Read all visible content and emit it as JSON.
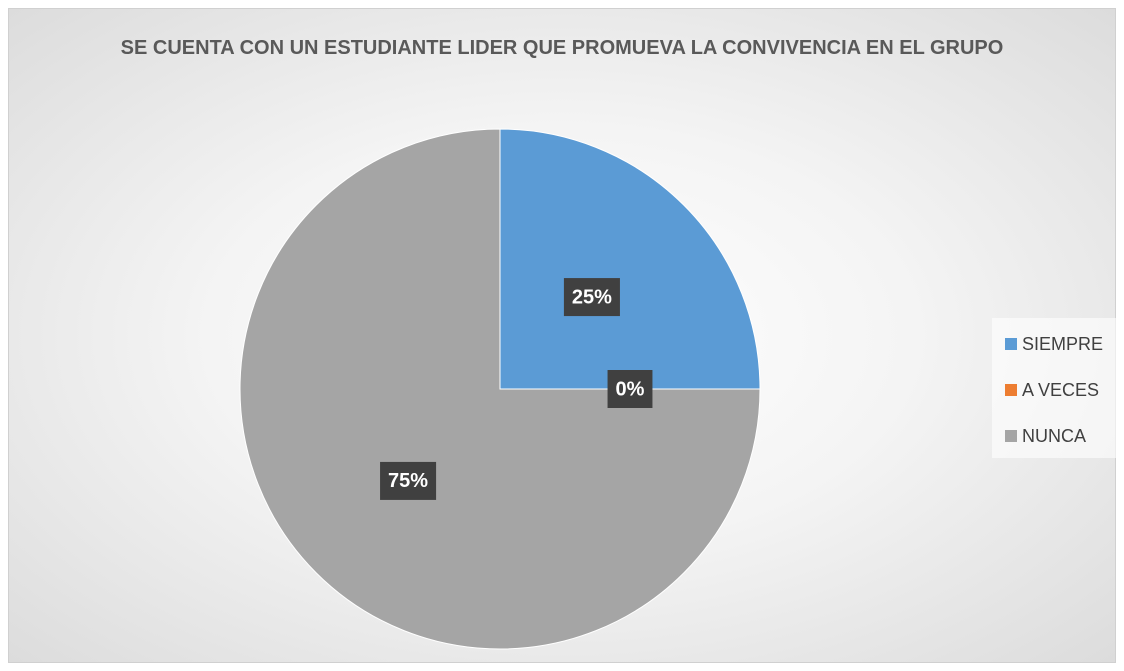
{
  "chart_data": {
    "type": "pie",
    "title": "SE CUENTA CON UN ESTUDIANTE LIDER QUE PROMUEVA LA CONVIVENCIA EN EL GRUPO",
    "categories": [
      "SIEMPRE",
      "A VECES",
      "NUNCA"
    ],
    "values": [
      25,
      0,
      75
    ],
    "value_labels": [
      "25%",
      "0%",
      "75%"
    ],
    "colors": [
      "#5b9bd5",
      "#ed7d31",
      "#a5a5a5"
    ],
    "legend": "right"
  }
}
